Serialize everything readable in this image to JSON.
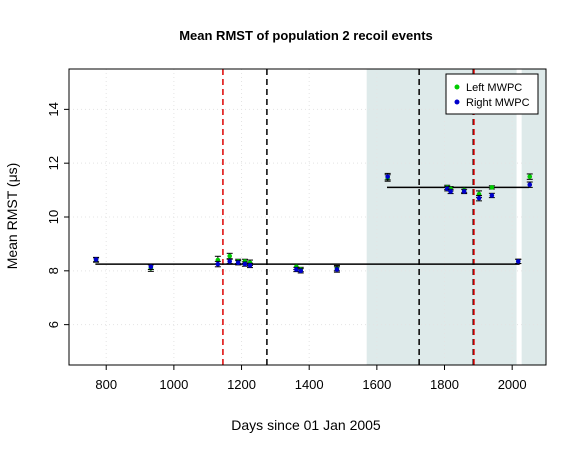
{
  "chart_data": {
    "type": "scatter",
    "title": "Mean RMST of population 2 recoil events",
    "xlabel": "Days since 01 Jan 2005",
    "ylabel": "Mean RMST (μs)",
    "xlim": [
      690,
      2100
    ],
    "ylim": [
      4.5,
      15.5
    ],
    "x_ticks": [
      800,
      1000,
      1200,
      1400,
      1600,
      1800,
      2000
    ],
    "y_ticks": [
      6,
      8,
      10,
      12,
      14
    ],
    "grid": true,
    "legend_position": "top-right",
    "shaded_regions": [
      {
        "x_start": 1570,
        "x_end": 2013,
        "color": "#deeaea"
      },
      {
        "x_start": 2028,
        "x_end": 2100,
        "color": "#deeaea"
      }
    ],
    "vertical_lines": [
      {
        "x": 1145,
        "color": "#dd0000",
        "style": "dashed"
      },
      {
        "x": 1275,
        "color": "#000000",
        "style": "dashed"
      },
      {
        "x": 1725,
        "color": "#000000",
        "style": "dashed"
      },
      {
        "x": 1885,
        "color": "#000000",
        "style": "dashed"
      },
      {
        "x": 1887,
        "color": "#dd0000",
        "style": "dashed"
      }
    ],
    "fit_lines": [
      {
        "x_start": 768,
        "x_end": 2022,
        "y": 8.25
      },
      {
        "x_start": 1630,
        "x_end": 2050,
        "y": 11.1
      }
    ],
    "series": [
      {
        "name": "Left MWPC",
        "color": "#00cc00",
        "points": [
          {
            "x": 770,
            "y": 8.4,
            "err": 0.08
          },
          {
            "x": 932,
            "y": 8.1,
            "err": 0.12
          },
          {
            "x": 1130,
            "y": 8.4,
            "err": 0.14
          },
          {
            "x": 1165,
            "y": 8.55,
            "err": 0.1
          },
          {
            "x": 1190,
            "y": 8.35,
            "err": 0.08
          },
          {
            "x": 1210,
            "y": 8.35,
            "err": 0.08
          },
          {
            "x": 1225,
            "y": 8.3,
            "err": 0.1
          },
          {
            "x": 1362,
            "y": 8.15,
            "err": 0.1
          },
          {
            "x": 1375,
            "y": 8.05,
            "err": 0.08
          },
          {
            "x": 1482,
            "y": 8.1,
            "err": 0.1
          },
          {
            "x": 1632,
            "y": 11.45,
            "err": 0.12
          },
          {
            "x": 1808,
            "y": 11.1,
            "err": 0.08
          },
          {
            "x": 1818,
            "y": 11.05,
            "err": 0.08
          },
          {
            "x": 1858,
            "y": 11.0,
            "err": 0.1
          },
          {
            "x": 1902,
            "y": 10.85,
            "err": 0.12
          },
          {
            "x": 1940,
            "y": 11.1,
            "err": 0.06
          },
          {
            "x": 2018,
            "y": 8.35,
            "err": 0.08
          },
          {
            "x": 2052,
            "y": 11.5,
            "err": 0.1
          }
        ]
      },
      {
        "name": "Right MWPC",
        "color": "#0000cc",
        "points": [
          {
            "x": 770,
            "y": 8.42,
            "err": 0.08
          },
          {
            "x": 932,
            "y": 8.15,
            "err": 0.1
          },
          {
            "x": 1130,
            "y": 8.25,
            "err": 0.1
          },
          {
            "x": 1165,
            "y": 8.35,
            "err": 0.08
          },
          {
            "x": 1190,
            "y": 8.3,
            "err": 0.08
          },
          {
            "x": 1210,
            "y": 8.25,
            "err": 0.08
          },
          {
            "x": 1225,
            "y": 8.2,
            "err": 0.08
          },
          {
            "x": 1362,
            "y": 8.05,
            "err": 0.08
          },
          {
            "x": 1375,
            "y": 8.0,
            "err": 0.08
          },
          {
            "x": 1482,
            "y": 8.05,
            "err": 0.1
          },
          {
            "x": 1632,
            "y": 11.5,
            "err": 0.12
          },
          {
            "x": 1808,
            "y": 11.05,
            "err": 0.08
          },
          {
            "x": 1818,
            "y": 10.95,
            "err": 0.08
          },
          {
            "x": 1858,
            "y": 10.95,
            "err": 0.08
          },
          {
            "x": 1902,
            "y": 10.7,
            "err": 0.1
          },
          {
            "x": 1940,
            "y": 10.8,
            "err": 0.08
          },
          {
            "x": 2018,
            "y": 8.35,
            "err": 0.08
          },
          {
            "x": 2052,
            "y": 11.2,
            "err": 0.1
          }
        ]
      }
    ]
  }
}
